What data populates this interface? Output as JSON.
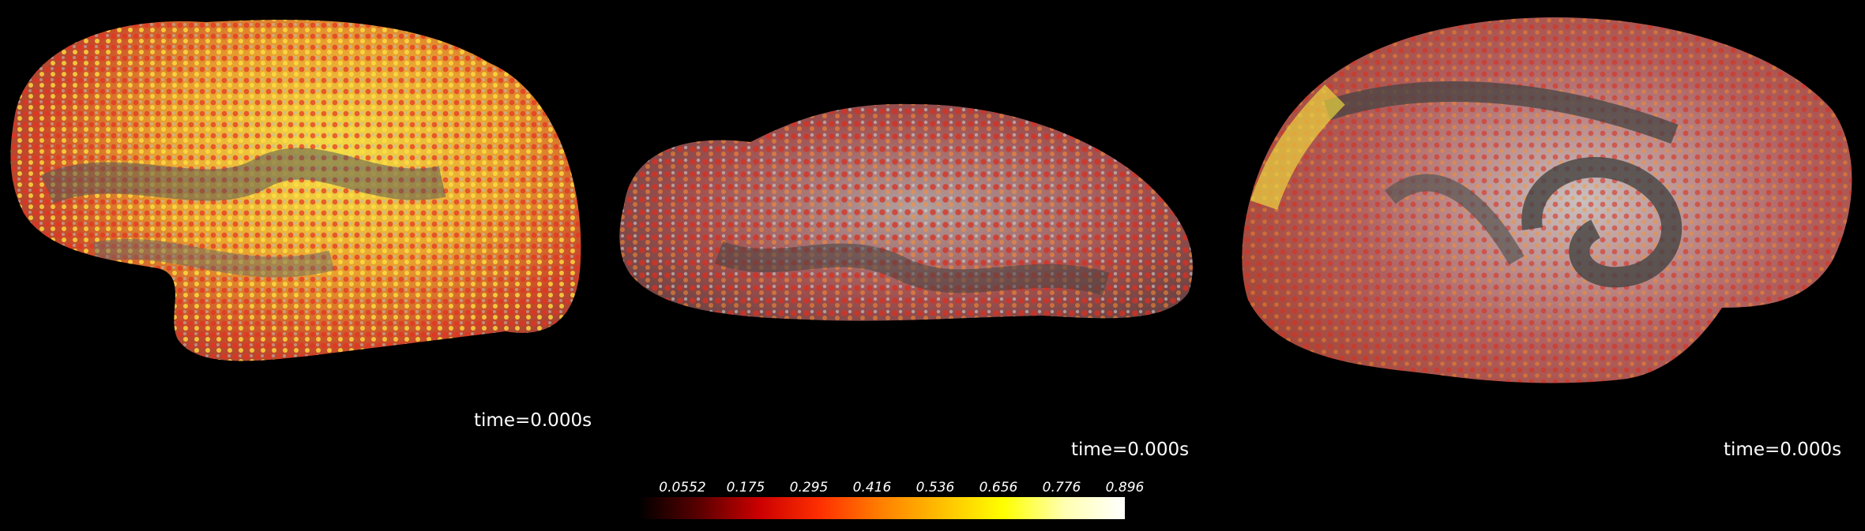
{
  "views": [
    {
      "name": "lateral-view",
      "time_label": "time=0.000s"
    },
    {
      "name": "ventral-view",
      "time_label": "time=0.000s"
    },
    {
      "name": "medial-view",
      "time_label": "time=0.000s"
    }
  ],
  "colorbar": {
    "colormap": [
      "#000000",
      "#5a0000",
      "#cc0000",
      "#ff3000",
      "#ff8000",
      "#ffc000",
      "#ffff00",
      "#ffffb0",
      "#ffffff"
    ],
    "ticks": [
      "0.0552",
      "0.175",
      "0.295",
      "0.416",
      "0.536",
      "0.656",
      "0.776",
      "0.896"
    ]
  }
}
